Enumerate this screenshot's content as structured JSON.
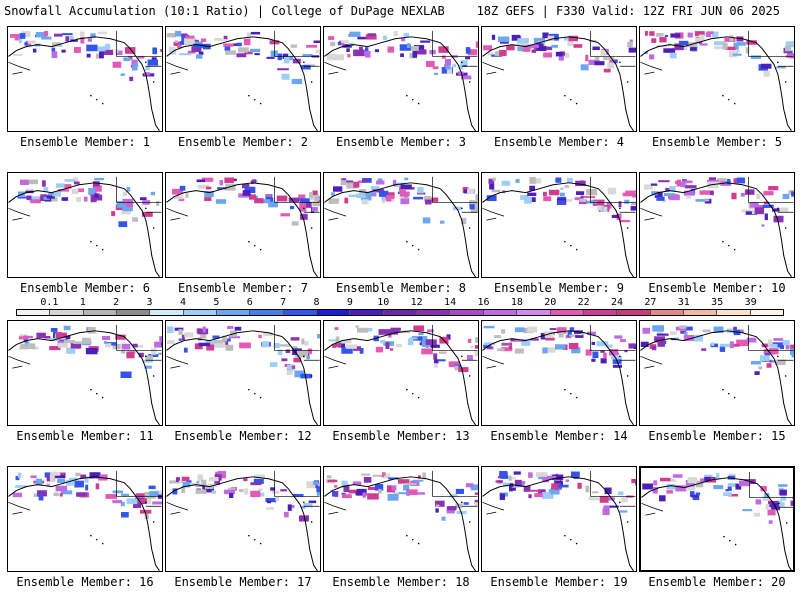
{
  "header": {
    "title_left": "Snowfall Accumulation (10:1 Ratio) | College of DuPage NEXLAB",
    "title_right": "18Z GEFS | F330 Valid: 12Z FRI JUN 06 2025"
  },
  "panels": [
    {
      "label": "Ensemble Member: 1"
    },
    {
      "label": "Ensemble Member: 2"
    },
    {
      "label": "Ensemble Member: 3"
    },
    {
      "label": "Ensemble Member: 4"
    },
    {
      "label": "Ensemble Member: 5"
    },
    {
      "label": "Ensemble Member: 6"
    },
    {
      "label": "Ensemble Member: 7"
    },
    {
      "label": "Ensemble Member: 8"
    },
    {
      "label": "Ensemble Member: 9"
    },
    {
      "label": "Ensemble Member: 10"
    },
    {
      "label": "Ensemble Member: 11"
    },
    {
      "label": "Ensemble Member: 12"
    },
    {
      "label": "Ensemble Member: 13"
    },
    {
      "label": "Ensemble Member: 14"
    },
    {
      "label": "Ensemble Member: 15"
    },
    {
      "label": "Ensemble Member: 16"
    },
    {
      "label": "Ensemble Member: 17"
    },
    {
      "label": "Ensemble Member: 18"
    },
    {
      "label": "Ensemble Member: 19"
    },
    {
      "label": "Ensemble Member: 20",
      "selected": true
    }
  ],
  "colorbar": {
    "tick_labels": [
      "0.1",
      "1",
      "2",
      "3",
      "4",
      "5",
      "6",
      "7",
      "8",
      "9",
      "10",
      "12",
      "14",
      "16",
      "18",
      "20",
      "22",
      "24",
      "27",
      "31",
      "35",
      "39"
    ],
    "colors": [
      "#f2f2f2",
      "#d4d4d4",
      "#b4b4b4",
      "#8c8c8c",
      "#d0ecfb",
      "#9ecdf6",
      "#6aa7ee",
      "#4a7ee8",
      "#3355ea",
      "#1c1cd6",
      "#4c1fb8",
      "#6a29a6",
      "#8a32b4",
      "#a64bc9",
      "#bf6ae0",
      "#d788ef",
      "#e35ab4",
      "#d03c91",
      "#c73b76",
      "#e08a8a",
      "#f2b8a2",
      "#fbe0cc",
      "#fff6ea"
    ]
  }
}
